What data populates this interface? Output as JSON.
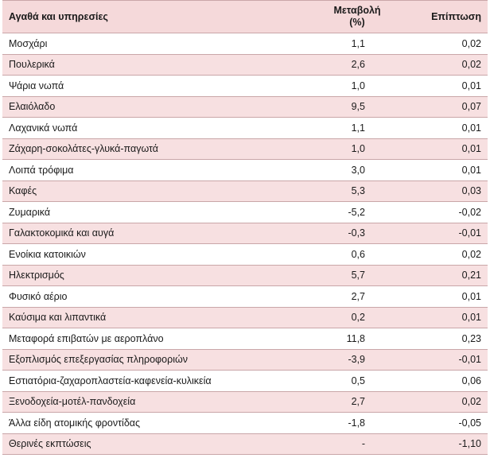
{
  "table": {
    "headers": {
      "item": "Αγαθά και υπηρεσίες",
      "change_line1": "Μεταβολή",
      "change_line2": "(%)",
      "impact": "Επίπτωση"
    },
    "rows": [
      {
        "item": "Μοσχάρι",
        "change": "1,1",
        "impact": "0,02"
      },
      {
        "item": "Πουλερικά",
        "change": "2,6",
        "impact": "0,02"
      },
      {
        "item": "Ψάρια νωπά",
        "change": "1,0",
        "impact": "0,01"
      },
      {
        "item": "Ελαιόλαδο",
        "change": "9,5",
        "impact": "0,07"
      },
      {
        "item": "Λαχανικά νωπά",
        "change": "1,1",
        "impact": "0,01"
      },
      {
        "item": "Ζάχαρη-σοκολάτες-γλυκά-παγωτά",
        "change": "1,0",
        "impact": "0,01"
      },
      {
        "item": "Λοιπά τρόφιμα",
        "change": "3,0",
        "impact": "0,01"
      },
      {
        "item": "Καφές",
        "change": "5,3",
        "impact": "0,03"
      },
      {
        "item": "Ζυμαρικά",
        "change": "-5,2",
        "impact": "-0,02"
      },
      {
        "item": "Γαλακτοκομικά και αυγά",
        "change": "-0,3",
        "impact": "-0,01"
      },
      {
        "item": "Ενοίκια κατοικιών",
        "change": "0,6",
        "impact": "0,02"
      },
      {
        "item": "Ηλεκτρισμός",
        "change": "5,7",
        "impact": "0,21"
      },
      {
        "item": "Φυσικό αέριο",
        "change": "2,7",
        "impact": "0,01"
      },
      {
        "item": "Καύσιμα και λιπαντικά",
        "change": "0,2",
        "impact": "0,01"
      },
      {
        "item": "Μεταφορά επιβατών με αεροπλάνο",
        "change": "11,8",
        "impact": "0,23"
      },
      {
        "item": "Εξοπλισμός επεξεργασίας πληροφοριών",
        "change": "-3,9",
        "impact": "-0,01"
      },
      {
        "item": "Εστιατόρια-ζαχαροπλαστεία-καφενεία-κυλικεία",
        "change": "0,5",
        "impact": "0,06"
      },
      {
        "item": "Ξενοδοχεία-μοτέλ-πανδοχεία",
        "change": "2,7",
        "impact": "0,02"
      },
      {
        "item": "Άλλα είδη ατομικής φροντίδας",
        "change": "-1,8",
        "impact": "-0,05"
      },
      {
        "item": "Θερινές εκπτώσεις",
        "change": "-",
        "impact": "-1,10"
      }
    ]
  }
}
